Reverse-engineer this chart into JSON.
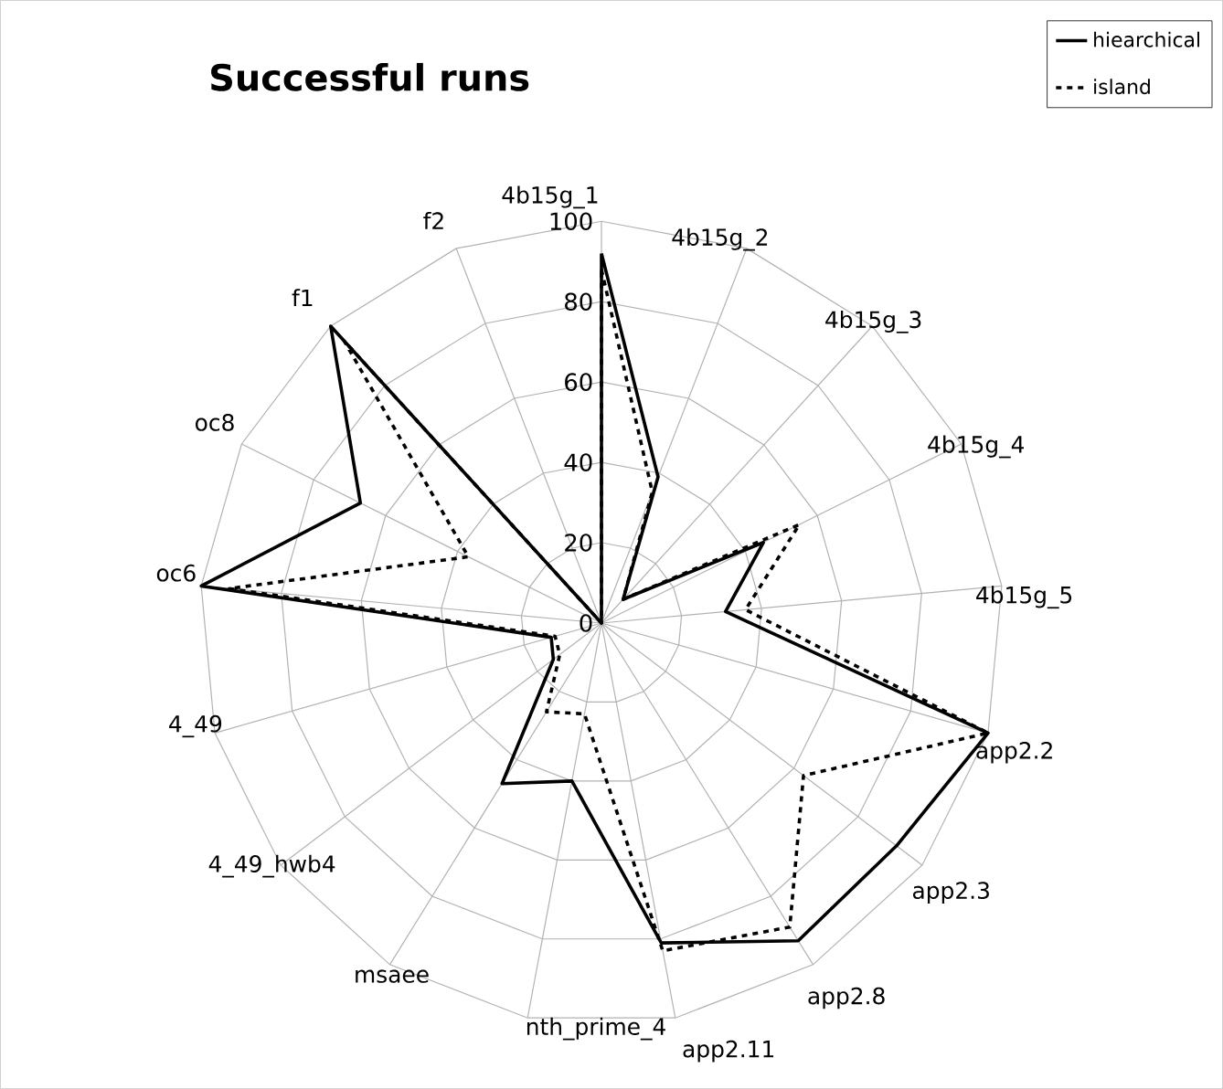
{
  "chart_data": {
    "type": "radar",
    "title": "Successful runs",
    "categories": [
      "4b15g_1",
      "4b15g_2",
      "4b15g_3",
      "4b15g_4",
      "4b15g_5",
      "app2.2",
      "app2.3",
      "app2.8",
      "app2.11",
      "nth_prime_4",
      "msaee",
      "4_49_hwb4",
      "4_49",
      "oc6",
      "oc8",
      "f1",
      "f2"
    ],
    "series": [
      {
        "name": "hiearchical",
        "color": "#000000",
        "line_style": "solid",
        "values": [
          92,
          39,
          8,
          45,
          31,
          100,
          92,
          93,
          81,
          40,
          47,
          15,
          13,
          100,
          67,
          100,
          0
        ]
      },
      {
        "name": "island",
        "color": "#000000",
        "line_style": "dashed",
        "values": [
          88,
          35,
          8,
          55,
          36,
          100,
          63,
          89,
          83,
          23,
          26,
          13,
          12,
          93,
          37,
          95,
          0
        ]
      }
    ],
    "ylim": [
      0,
      100
    ],
    "yticks": [
      0,
      20,
      40,
      60,
      80,
      100
    ],
    "grid": true,
    "legend": "top right"
  }
}
